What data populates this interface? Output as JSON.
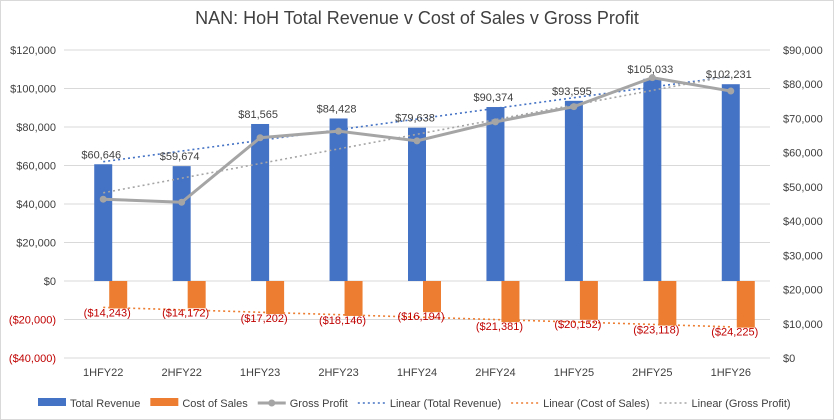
{
  "chart_data": {
    "type": "bar",
    "title": "NAN: HoH Total Revenue v Cost of Sales v Gross Profit",
    "categories": [
      "1HFY22",
      "2HFY22",
      "1HFY23",
      "2HFY23",
      "1HFY24",
      "2HFY24",
      "1HFY25",
      "2HFY25",
      "1HFY26"
    ],
    "series": [
      {
        "name": "Total Revenue",
        "type": "bar",
        "axis": "left",
        "color": "#4472c4",
        "values": [
          60646,
          59674,
          81565,
          84428,
          79638,
          90374,
          93595,
          105033,
          102231
        ],
        "labels": [
          "$60,646",
          "$59,674",
          "$81,565",
          "$84,428",
          "$79,638",
          "$90,374",
          "$93,595",
          "$105,033",
          "$102,231"
        ]
      },
      {
        "name": "Cost of Sales",
        "type": "bar",
        "axis": "left",
        "color": "#ed7d31",
        "values": [
          -14243,
          -14172,
          -17202,
          -18146,
          -16194,
          -21381,
          -20152,
          -23118,
          -24225
        ],
        "labels": [
          "($14,243)",
          "($14,172)",
          "($17,202)",
          "($18,146)",
          "($16,194)",
          "($21,381)",
          "($20,152)",
          "($23,118)",
          "($24,225)"
        ]
      },
      {
        "name": "Gross Profit",
        "type": "line",
        "axis": "right",
        "color": "#a5a5a5",
        "values": [
          46403,
          45502,
          64363,
          66282,
          63444,
          68993,
          73443,
          81915,
          78006
        ]
      }
    ],
    "trendlines": [
      {
        "name": "Linear (Total Revenue)",
        "of": "Total Revenue",
        "color": "#4472c4"
      },
      {
        "name": "Linear (Cost of Sales)",
        "of": "Cost of Sales",
        "color": "#ed7d31"
      },
      {
        "name": "Linear (Gross Profit)",
        "of": "Gross Profit",
        "color": "#a5a5a5"
      }
    ],
    "left_axis": {
      "ylim": [
        -40000,
        120000
      ],
      "ticks": [
        120000,
        100000,
        80000,
        60000,
        40000,
        20000,
        0,
        -20000,
        -40000
      ],
      "tick_labels": [
        "$120,000",
        "$100,000",
        "$80,000",
        "$60,000",
        "$40,000",
        "$20,000",
        "$0",
        "($20,000)",
        "($40,000)"
      ]
    },
    "right_axis": {
      "ylim": [
        0,
        90000
      ],
      "ticks": [
        90000,
        80000,
        70000,
        60000,
        50000,
        40000,
        30000,
        20000,
        10000,
        0
      ],
      "tick_labels": [
        "$90,000",
        "$80,000",
        "$70,000",
        "$60,000",
        "$50,000",
        "$40,000",
        "$30,000",
        "$20,000",
        "$10,000",
        "$0"
      ]
    },
    "grid": true,
    "legend_position": "bottom",
    "negative_label_color": "#c00000",
    "text_color": "#404040"
  }
}
